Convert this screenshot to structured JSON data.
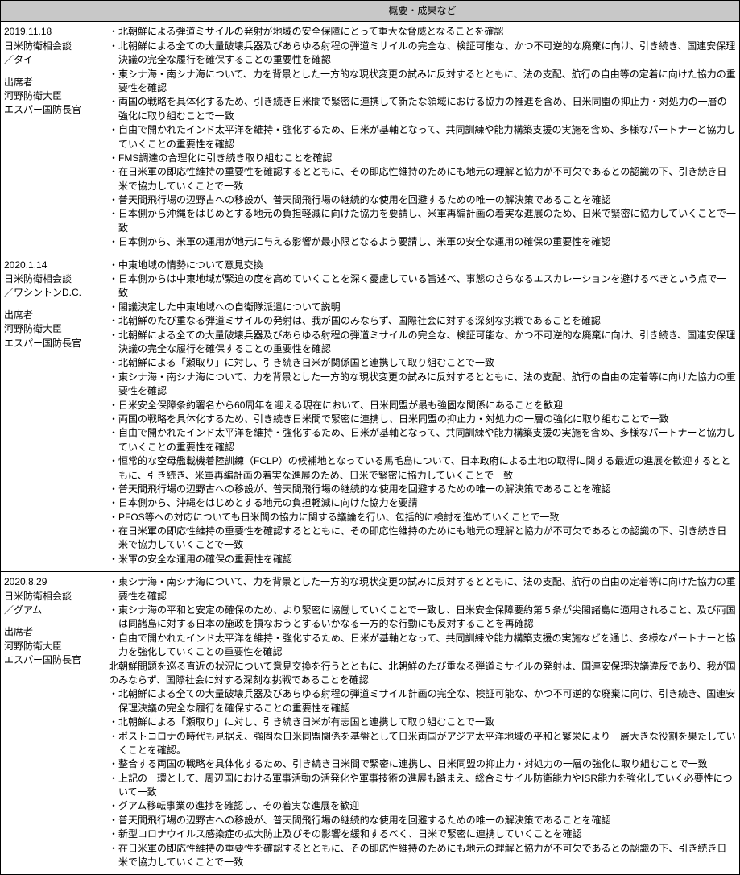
{
  "colors": {
    "header_bg": "#c8c8c8",
    "border": "#000000",
    "text": "#000000",
    "bg": "#ffffff"
  },
  "table": {
    "header": {
      "left": "",
      "right": "概要・成果など"
    },
    "rows": [
      {
        "left": {
          "line1": "2019.11.18",
          "line2": "日米防衛相会談",
          "line3": "／タイ",
          "label": "出席者",
          "p1": "河野防衛大臣",
          "p2": "エスパー国防長官"
        },
        "bullets": [
          "北朝鮮による弾道ミサイルの発射が地域の安全保障にとって重大な脅威となることを確認",
          "北朝鮮による全ての大量破壊兵器及びあらゆる射程の弾道ミサイルの完全な、検証可能な、かつ不可逆的な廃棄に向け、引き続き、国連安保理決議の完全な履行を確保することの重要性を確認",
          "東シナ海・南シナ海について、力を背景とした一方的な現状変更の試みに反対するとともに、法の支配、航行の自由等の定着に向けた協力の重要性を確認",
          "両国の戦略を具体化するため、引き続き日米間で緊密に連携して新たな領域における協力の推進を含め、日米同盟の抑止力・対処力の一層の強化に取り組むことで一致",
          "自由で開かれたインド太平洋を維持・強化するため、日米が基軸となって、共同訓練や能力構築支援の実施を含め、多様なパートナーと協力していくことの重要性を確認",
          "FMS調達の合理化に引き続き取り組むことを確認",
          "在日米軍の即応性維持の重要性を確認するとともに、その即応性維持のためにも地元の理解と協力が不可欠であるとの認識の下、引き続き日米で協力していくことで一致",
          "普天間飛行場の辺野古への移設が、普天間飛行場の継続的な使用を回避するための唯一の解決策であることを確認",
          "日本側から沖縄をはじめとする地元の負担軽減に向けた協力を要請し、米軍再編計画の着実な進展のため、日米で緊密に協力していくことで一致",
          "日本側から、米軍の運用が地元に与える影響が最小限となるよう要請し、米軍の安全な運用の確保の重要性を確認"
        ]
      },
      {
        "left": {
          "line1": "2020.1.14",
          "line2": "日米防衛相会談",
          "line3": "／ワシントンD.C.",
          "label": "出席者",
          "p1": "河野防衛大臣",
          "p2": "エスパー国防長官"
        },
        "bullets": [
          "中東地域の情勢について意見交換",
          "日本側からは中東地域が緊迫の度を高めていくことを深く憂慮している旨述べ、事態のさらなるエスカレーションを避けるべきという点で一致",
          "閣議決定した中東地域への自衛隊派遣について説明",
          "北朝鮮のたび重なる弾道ミサイルの発射は、我が国のみならず、国際社会に対する深刻な挑戦であることを確認",
          "北朝鮮による全ての大量破壊兵器及びあらゆる射程の弾道ミサイルの完全な、検証可能な、かつ不可逆的な廃棄に向け、引き続き、国連安保理決議の完全な履行を確保することの重要性を確認",
          "北朝鮮による「瀬取り」に対し、引き続き日米が関係国と連携して取り組むことで一致",
          "東シナ海・南シナ海について、力を背景とした一方的な現状変更の試みに反対するとともに、法の支配、航行の自由の定着等に向けた協力の重要性を確認",
          "日米安全保障条約署名から60周年を迎える現在において、日米同盟が最も強固な関係にあることを歓迎",
          "両国の戦略を具体化するため、引き続き日米間で緊密に連携し、日米同盟の抑止力・対処力の一層の強化に取り組むことで一致",
          "自由で開かれたインド太平洋を維持・強化するため、日米が基軸となって、共同訓練や能力構築支援の実施を含め、多様なパートナーと協力していくことの重要性を確認",
          "恒常的な空母艦載機着陸訓練（FCLP）の候補地となっている馬毛島について、日本政府による土地の取得に関する最近の進展を歓迎するとともに、引き続き、米軍再編計画の着実な進展のため、日米で緊密に協力していくことで一致",
          "普天間飛行場の辺野古への移設が、普天間飛行場の継続的な使用を回避するための唯一の解決策であることを確認",
          "日本側から、沖縄をはじめとする地元の負担軽減に向けた協力を要請",
          "PFOS等への対応についても日米間の協力に関する議論を行い、包括的に検討を進めていくことで一致",
          "在日米軍の即応性維持の重要性を確認するとともに、その即応性維持のためにも地元の理解と協力が不可欠であるとの認識の下、引き続き日米で協力していくことで一致",
          "米軍の安全な運用の確保の重要性を確認"
        ]
      },
      {
        "left": {
          "line1": "2020.8.29",
          "line2": "日米防衛相会談",
          "line3": "／グアム",
          "label": "出席者",
          "p1": "河野防衛大臣",
          "p2": "エスパー国防長官"
        },
        "bullets": [
          "東シナ海・南シナ海について、力を背景とした一方的な現状変更の試みに反対するとともに、法の支配、航行の自由の定着等に向けた協力の重要性を確認",
          "東シナ海の平和と安定の確保のため、より緊密に協働していくことで一致し、日米安全保障要約第５条が尖閣諸島に適用されること、及び両国は同諸島に対する日本の施政を損なおうとするいかなる一方的な行動にも反対することを再確認",
          "自由で開かれたインド太平洋を維持・強化するため、日米が基軸となって、共同訓練や能力構築支援の実施などを通じ、多様なパートナーと協力を強化していくことの重要性を確認"
        ],
        "midpara": "北朝鮮問題を巡る直近の状況について意見交換を行うとともに、北朝鮮のたび重なる弾道ミサイルの発射は、国連安保理決議違反であり、我が国のみならず、国際社会に対する深刻な挑戦であることを確認",
        "bullets2": [
          "北朝鮮による全ての大量破壊兵器及びあらゆる射程の弾道ミサイル計画の完全な、検証可能な、かつ不可逆的な廃棄に向け、引き続き、国連安保理決議の完全な履行を確保することの重要性を確認",
          "北朝鮮による「瀬取り」に対し、引き続き日米が有志国と連携して取り組むことで一致",
          "ポストコロナの時代も見据え、強固な日米同盟関係を基盤として日米両国がアジア太平洋地域の平和と繁栄により一層大きな役割を果たしていくことを確認。",
          "整合する両国の戦略を具体化するため、引き続き日米間で緊密に連携し、日米同盟の抑止力・対処力の一層の強化に取り組むことで一致",
          "上記の一環として、周辺国における軍事活動の活発化や軍事技術の進展も踏まえ、総合ミサイル防衛能力やISR能力を強化していく必要性について一致",
          "グアム移転事業の進捗を確認し、その着実な進展を歓迎",
          "普天間飛行場の辺野古への移設が、普天間飛行場の継続的な使用を回避するための唯一の解決策であることを確認",
          "新型コロナウイルス感染症の拡大防止及びその影響を緩和するべく、日米で緊密に連携していくことを確認",
          "在日米軍の即応性維持の重要性を確認するとともに、その即応性維持のためにも地元の理解と協力が不可欠であるとの認識の下、引き続き日米で協力していくことで一致"
        ]
      }
    ]
  }
}
